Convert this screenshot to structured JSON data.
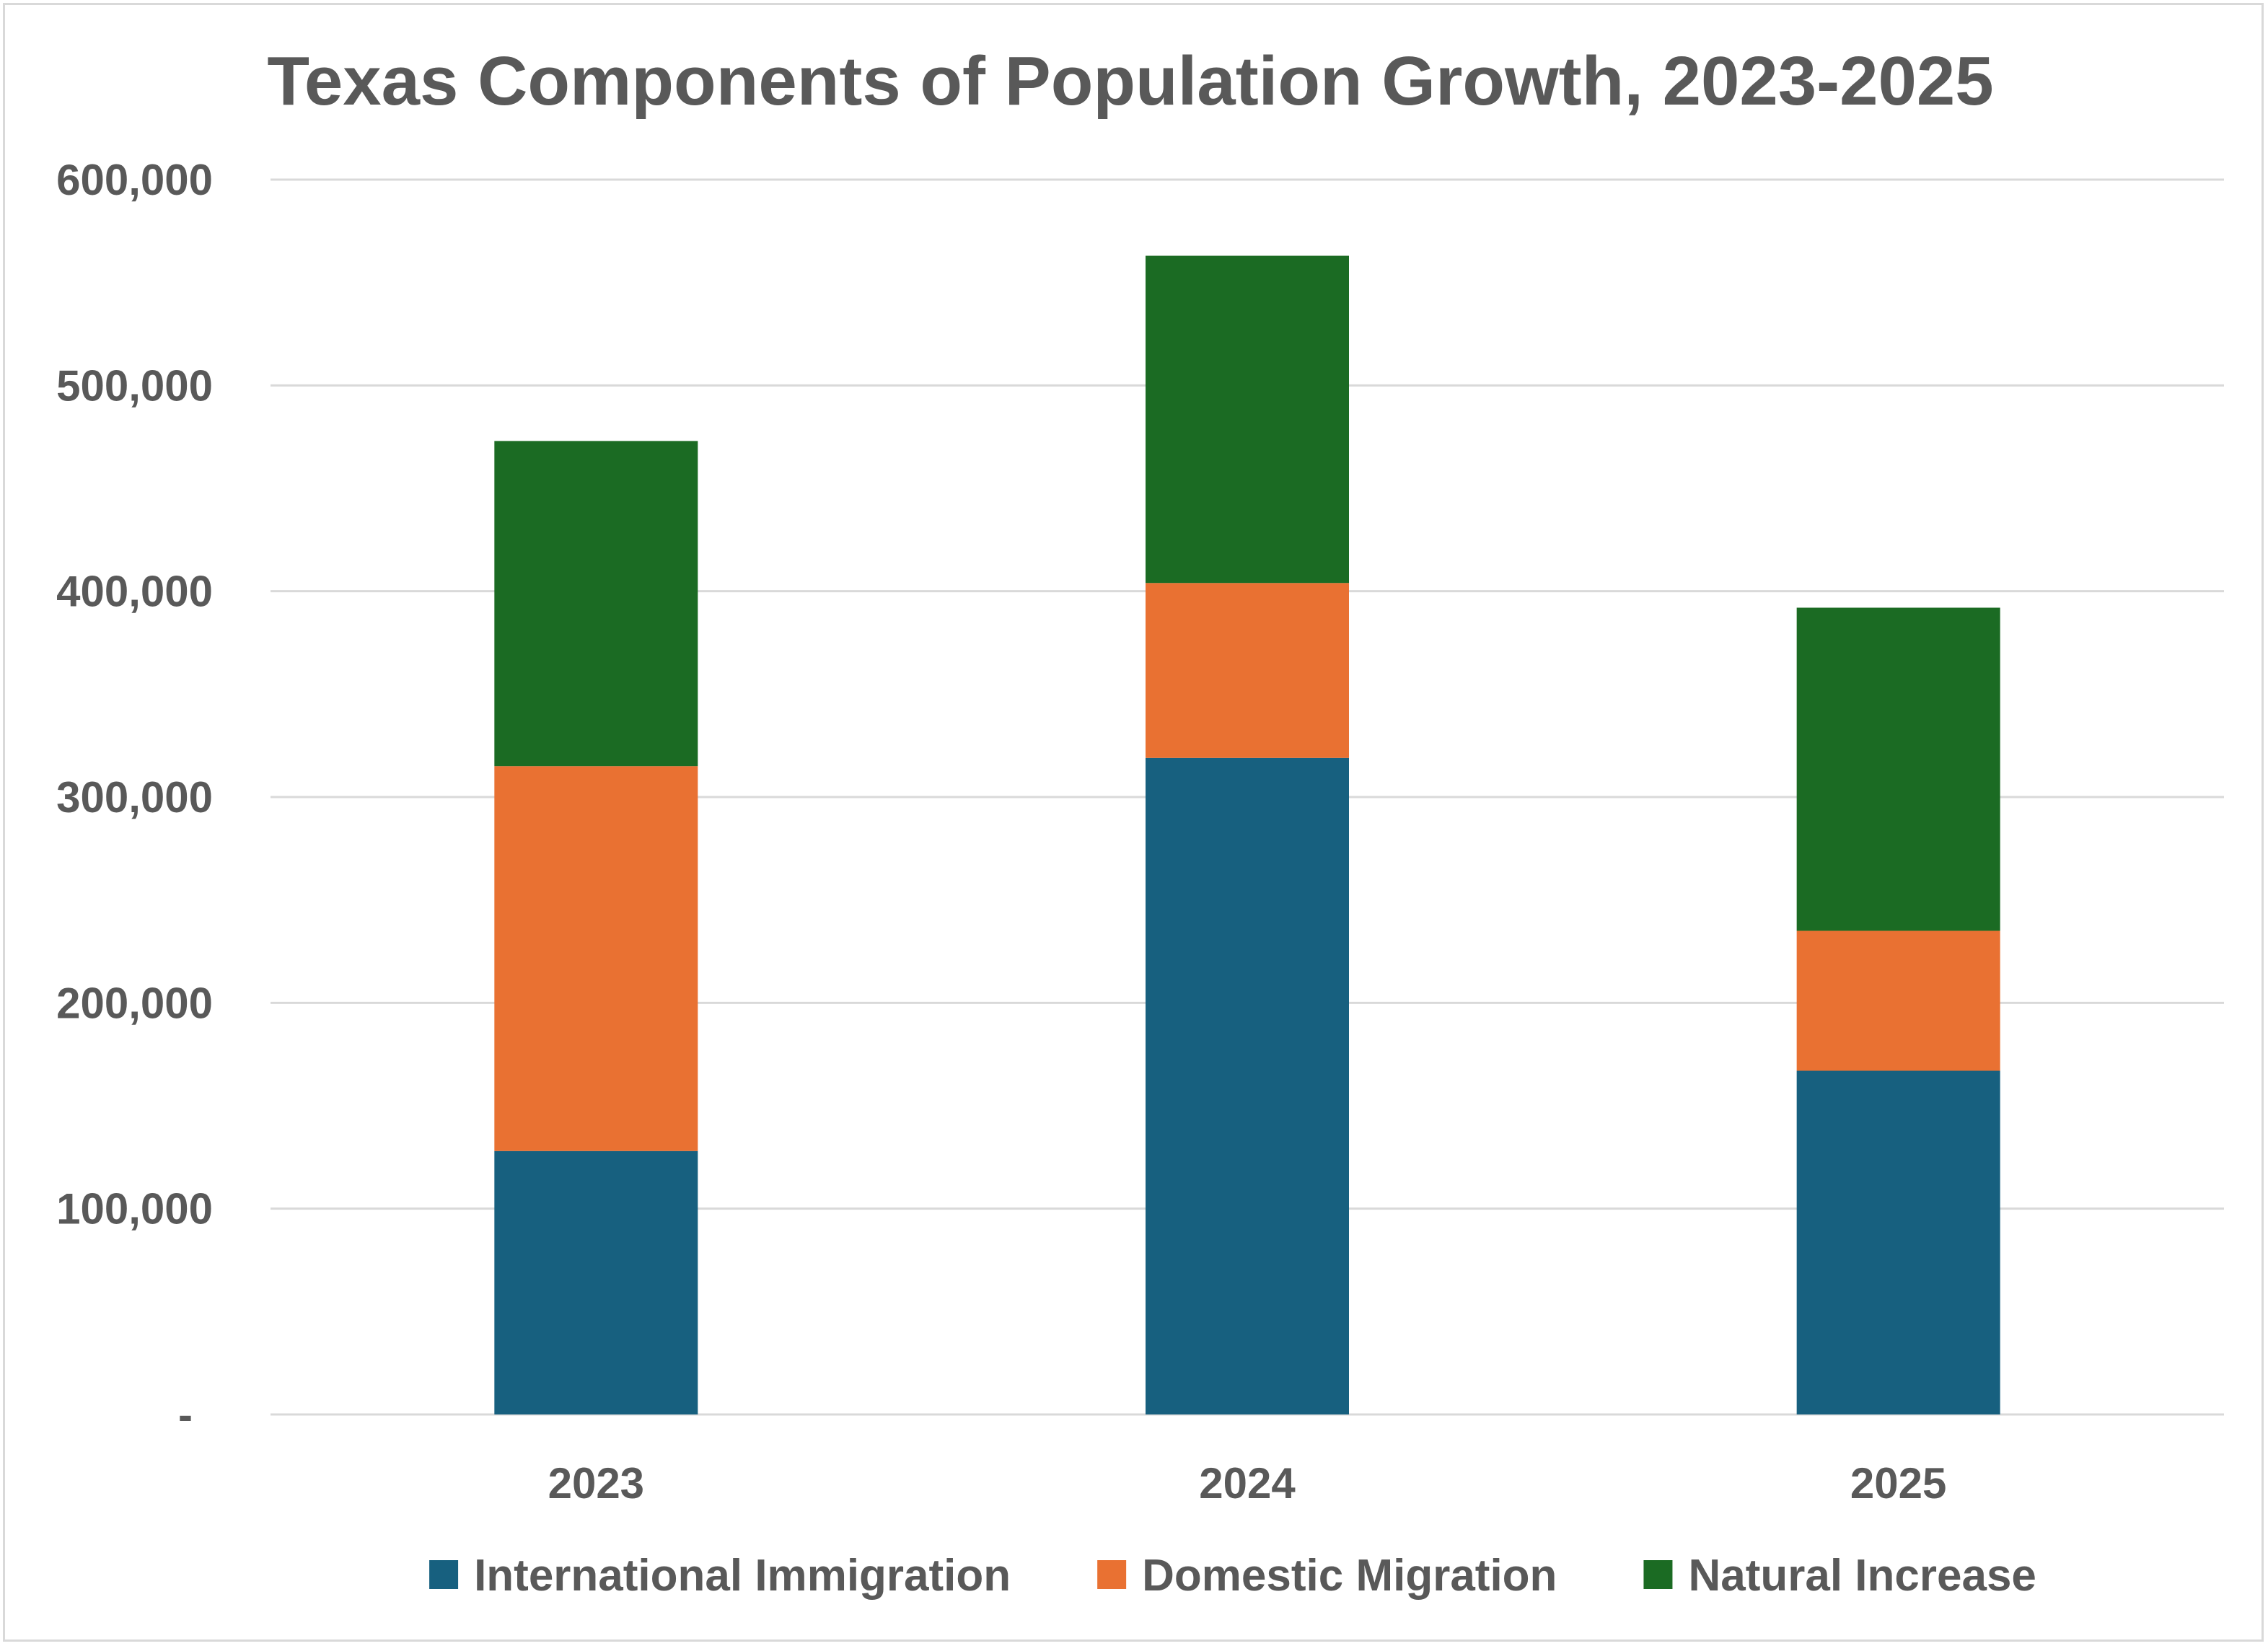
{
  "chart_data": {
    "type": "bar",
    "stacked": true,
    "title": "Texas Components of Population Growth, 2023-2025",
    "xlabel": "",
    "ylabel": "",
    "categories": [
      "2023",
      "2024",
      "2025"
    ],
    "series": [
      {
        "name": "International Immigration",
        "color": "#17607F",
        "values": [
          128000,
          319000,
          167000
        ]
      },
      {
        "name": "Domestic Migration",
        "color": "#E97132",
        "values": [
          187000,
          85000,
          68000
        ]
      },
      {
        "name": "Natural Increase",
        "color": "#1B6B23",
        "values": [
          158000,
          159000,
          157000
        ]
      }
    ],
    "ylim": [
      0,
      600000
    ],
    "y_ticks": [
      {
        "value": 0,
        "label": "-"
      },
      {
        "value": 100000,
        "label": "100,000"
      },
      {
        "value": 200000,
        "label": "200,000"
      },
      {
        "value": 300000,
        "label": "300,000"
      },
      {
        "value": 400000,
        "label": "400,000"
      },
      {
        "value": 500000,
        "label": "500,000"
      },
      {
        "value": 600000,
        "label": "600,000"
      }
    ],
    "grid": true,
    "legend_position": "bottom",
    "colors": {
      "gridline": "#d9d9d9",
      "text": "#595959"
    }
  }
}
